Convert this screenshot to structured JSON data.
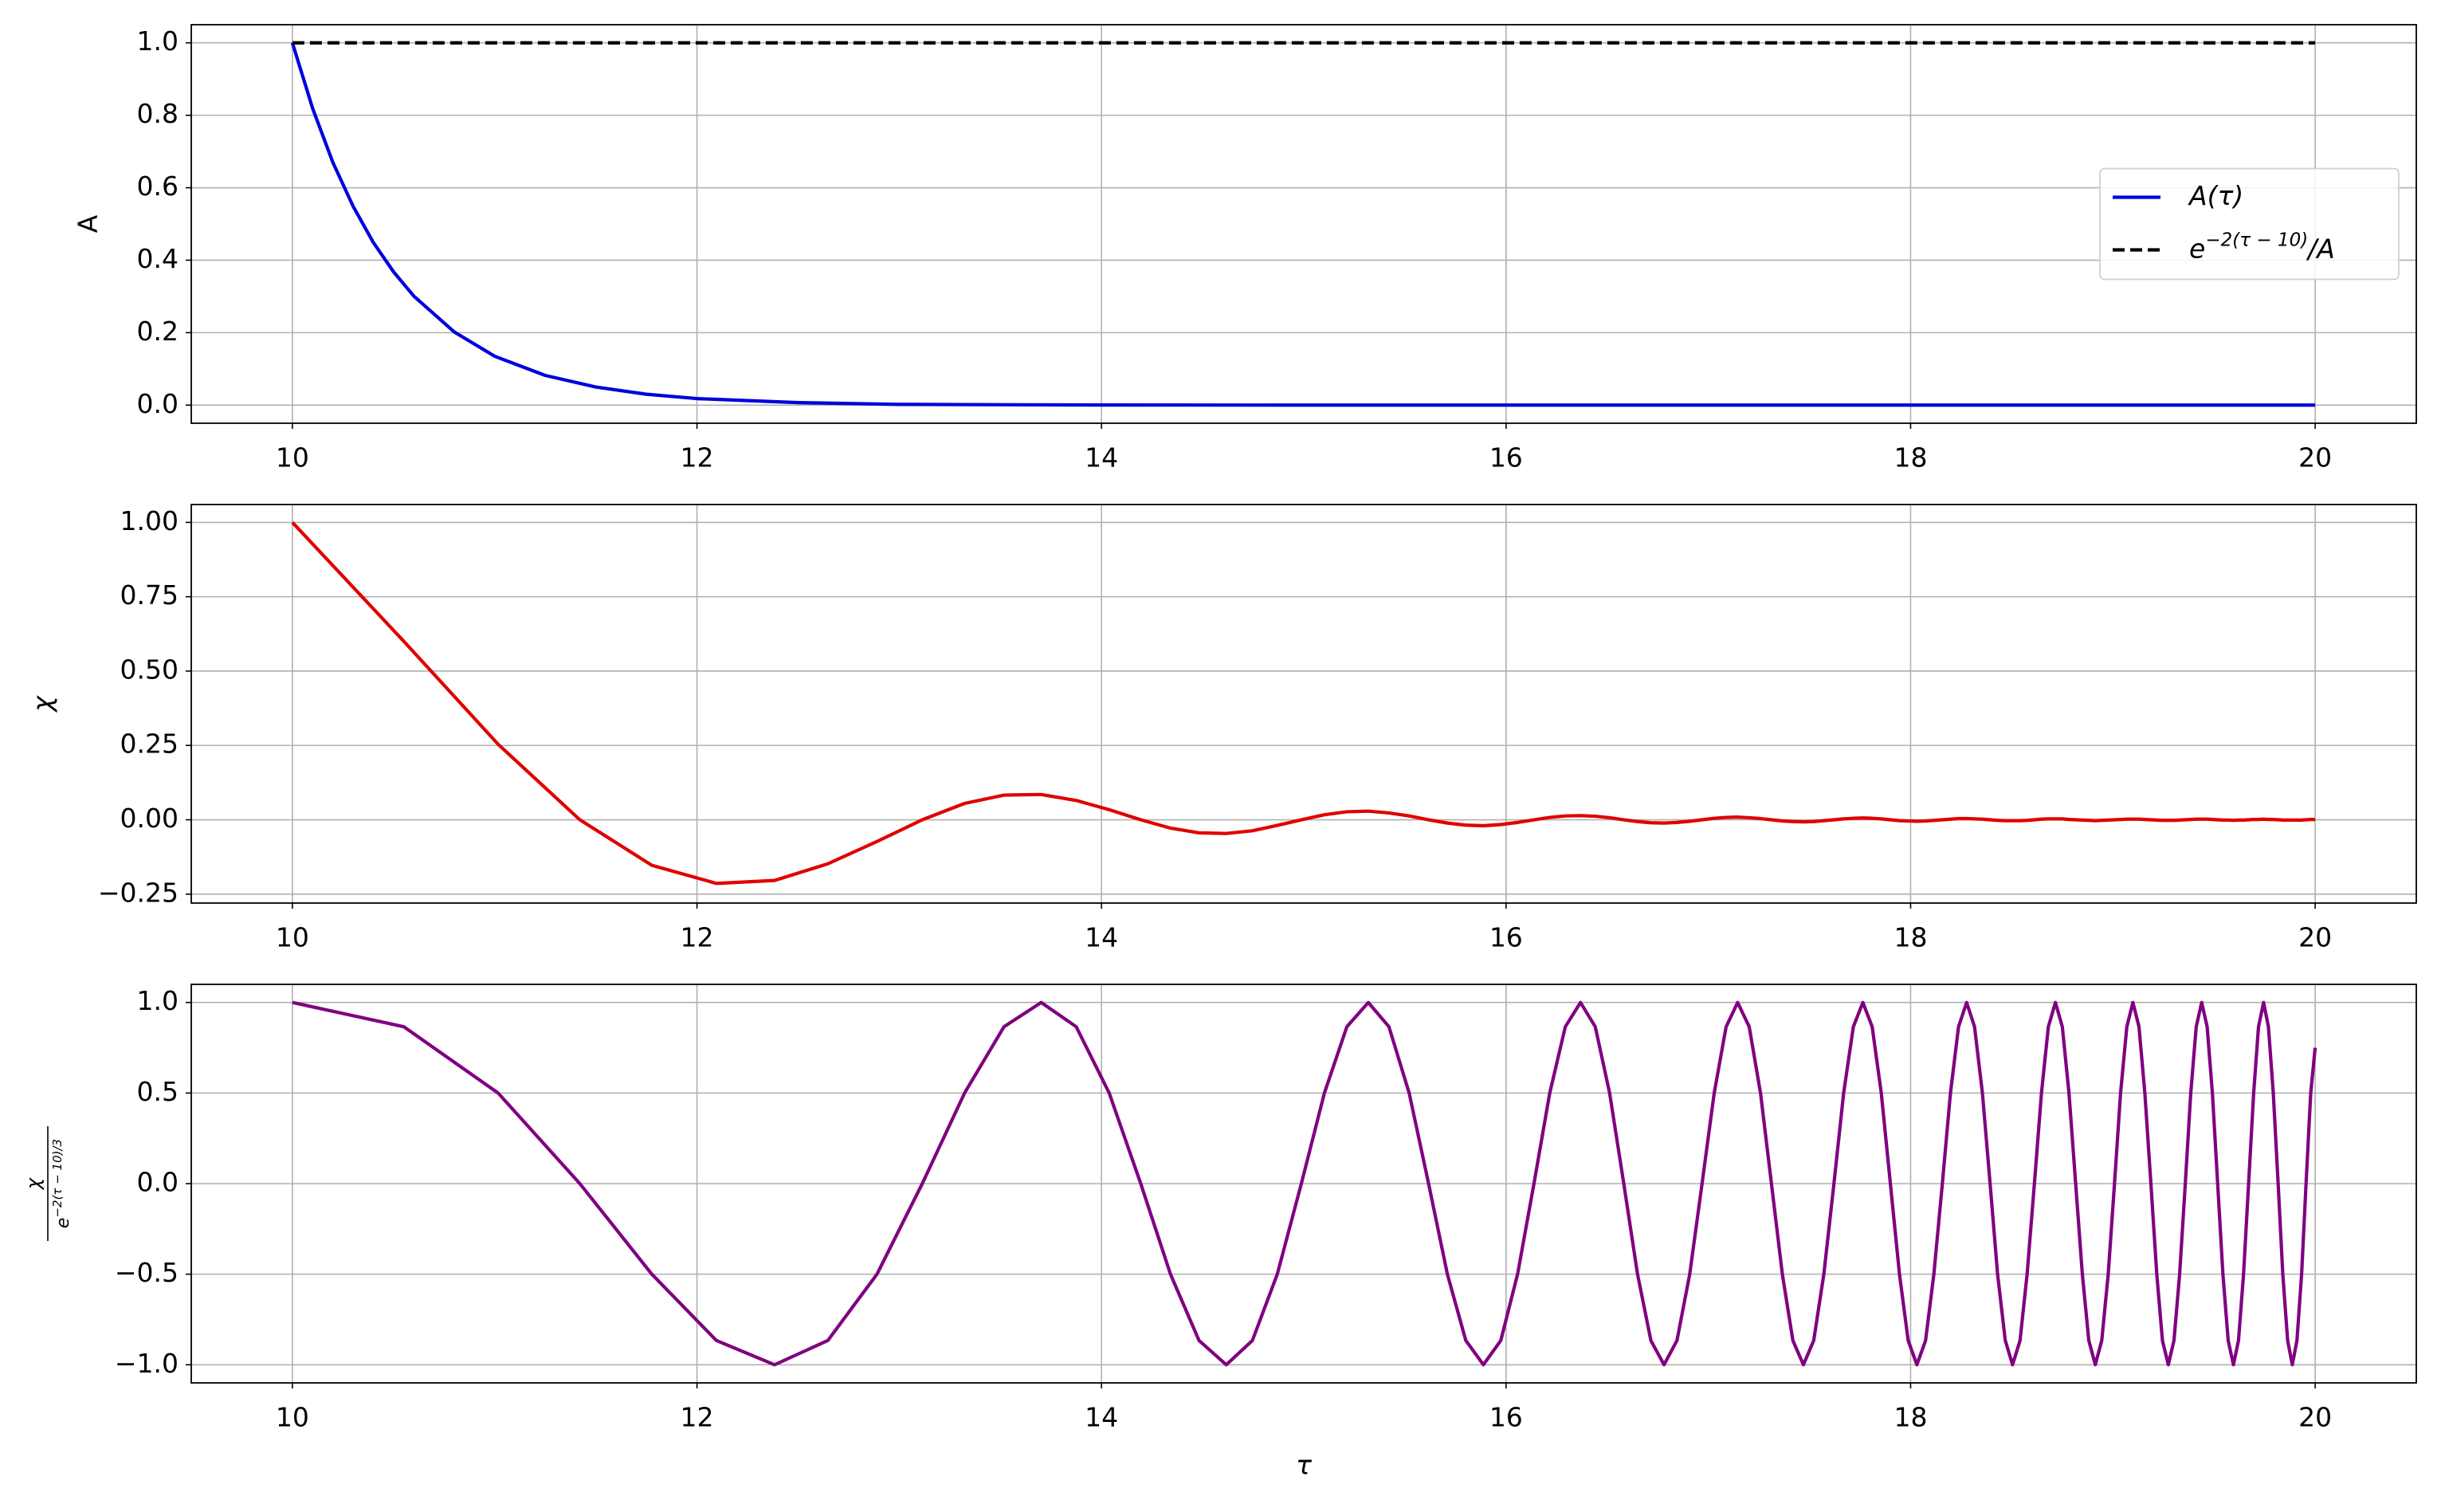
{
  "chart_data": [
    {
      "type": "line",
      "ylabel": "A",
      "grid": true,
      "legend": "center right",
      "xlim": [
        9.5,
        20.5
      ],
      "xticks": [
        10,
        12,
        14,
        16,
        18,
        20
      ],
      "ylim": [
        -0.05,
        1.05
      ],
      "yticks": [
        {
          "value": 0,
          "label": "0.0"
        },
        0.2,
        0.4,
        0.6,
        0.8,
        {
          "value": 1,
          "label": "1.0"
        }
      ],
      "x": [
        10,
        10.1,
        10.2,
        10.3,
        10.4,
        10.5,
        10.6,
        10.8,
        11,
        11.25,
        11.5,
        11.75,
        12,
        12.5,
        13,
        14,
        15,
        16,
        18,
        20
      ],
      "series": [
        {
          "name": "A(τ)",
          "color": "#0000dd",
          "dash": false,
          "values": [
            1,
            0.819,
            0.67,
            0.549,
            0.449,
            0.368,
            0.301,
            0.202,
            0.135,
            0.082,
            0.05,
            0.03,
            0.018,
            0.007,
            0.002,
            0.0003,
            5e-05,
            6e-06,
            1e-07,
            2e-09
          ]
        },
        {
          "name": {
            "base": "e",
            "sup": "−2(τ − 10)",
            "tail": "/A"
          },
          "color": "#000000",
          "dash": true,
          "values": [
            1,
            1,
            1,
            1,
            1,
            1,
            1,
            1,
            1,
            1,
            1,
            1,
            1,
            1,
            1,
            1,
            1,
            1,
            1,
            1
          ]
        }
      ]
    },
    {
      "type": "line",
      "ylabel": "χ",
      "grid": true,
      "xlim": [
        9.5,
        20.5
      ],
      "xticks": [
        10,
        12,
        14,
        16,
        18,
        20
      ],
      "ylim": [
        -0.28,
        1.06
      ],
      "yticks": [
        {
          "value": -0.25,
          "label": "−0.25"
        },
        {
          "value": 0,
          "label": "0.00"
        },
        {
          "value": 0.25,
          "label": "0.25"
        },
        {
          "value": 0.5,
          "label": "0.50"
        },
        0.75,
        {
          "value": 1,
          "label": "1.00"
        }
      ],
      "x": [
        10,
        10.551,
        11.017,
        11.421,
        11.777,
        12.096,
        12.384,
        12.647,
        12.89,
        13.114,
        13.323,
        13.518,
        13.702,
        13.875,
        14.038,
        14.194,
        14.341,
        14.482,
        14.617,
        14.746,
        14.869,
        14.988,
        15.102,
        15.213,
        15.319,
        15.421,
        15.521,
        15.617,
        15.71,
        15.801,
        15.888,
        15.974,
        16.057,
        16.138,
        16.216,
        16.293,
        16.368,
        16.441,
        16.512,
        16.582,
        16.65,
        16.716,
        16.781,
        16.845,
        16.908,
        16.969,
        17.029,
        17.088,
        17.145,
        17.202,
        17.258,
        17.312,
        17.366,
        17.418,
        17.47,
        17.521,
        17.571,
        17.621,
        17.669,
        17.717,
        17.764,
        17.81,
        17.855,
        17.9,
        17.945,
        17.988,
        18.031,
        18.074,
        18.115,
        18.157,
        18.197,
        18.237,
        18.277,
        18.316,
        18.355,
        18.393,
        18.43,
        18.468,
        18.504,
        18.541,
        18.576,
        18.612,
        18.647,
        18.681,
        18.716,
        18.75,
        18.783,
        18.816,
        18.849,
        18.881,
        18.913,
        18.945,
        18.977,
        19.008,
        19.038,
        19.069,
        19.099,
        19.129,
        19.158,
        19.188,
        19.217,
        19.245,
        19.274,
        19.302,
        19.33,
        19.358,
        19.385,
        19.412,
        19.439,
        19.466,
        19.492,
        19.518,
        19.544,
        19.57,
        19.596,
        19.621,
        19.646,
        19.671,
        19.696,
        19.72,
        19.745,
        19.769,
        19.793,
        19.817,
        19.84,
        19.864,
        19.887,
        19.91,
        19.933,
        19.955,
        19.978,
        20
      ],
      "series": [
        {
          "color": "#e00000",
          "dash": false,
          "values": [
            1,
            0.6,
            0.254,
            0,
            -0.153,
            -0.214,
            -0.204,
            -0.148,
            -0.073,
            0,
            0.055,
            0.083,
            0.085,
            0.065,
            0.034,
            0,
            -0.028,
            -0.044,
            -0.046,
            -0.037,
            -0.019,
            0,
            0.017,
            0.027,
            0.029,
            0.023,
            0.013,
            0,
            -0.011,
            -0.018,
            -0.02,
            -0.016,
            -0.009,
            0,
            0.008,
            0.013,
            0.014,
            0.012,
            0.007,
            0,
            -0.006,
            -0.01,
            -0.011,
            -0.009,
            -0.005,
            0,
            0.005,
            0.008,
            0.009,
            0.007,
            0.004,
            0,
            -0.004,
            -0.006,
            -0.007,
            -0.006,
            -0.003,
            0,
            0.003,
            0.005,
            0.006,
            0.005,
            0.003,
            0,
            -0.003,
            -0.004,
            -0.005,
            -0.004,
            -0.002,
            0,
            0.002,
            0.004,
            0.004,
            0.003,
            0.002,
            0,
            -0.002,
            -0.003,
            -0.003,
            -0.003,
            -0.002,
            0,
            0.002,
            0.003,
            0.003,
            0.003,
            0.001,
            0,
            -0.001,
            -0.002,
            -0.003,
            -0.002,
            -0.001,
            0,
            0.001,
            0.002,
            0.002,
            0.002,
            0.001,
            0,
            -0.001,
            -0.002,
            -0.002,
            -0.002,
            -0.001,
            0,
            0.001,
            0.002,
            0.002,
            0.002,
            0.001,
            0,
            -0.001,
            -0.001,
            -0.002,
            -0.001,
            -0.001,
            0,
            0.001,
            0.001,
            0.002,
            0.001,
            0.001,
            0,
            -0.001,
            -0.001,
            -0.001,
            -0.001,
            -0.001,
            0,
            0.001,
            0.001
          ]
        }
      ]
    },
    {
      "type": "line",
      "ylabel": {
        "num": "χ",
        "den": "e",
        "den_sup": "−2(τ − 10)/3"
      },
      "xlabel": "τ",
      "grid": true,
      "xlim": [
        9.5,
        20.5
      ],
      "xticks": [
        10,
        12,
        14,
        16,
        18,
        20
      ],
      "ylim": [
        -1.1,
        1.1
      ],
      "yticks": [
        {
          "value": -1,
          "label": "−1.0"
        },
        {
          "value": -0.5,
          "label": "−0.5"
        },
        {
          "value": 0,
          "label": "0.0"
        },
        0.5,
        {
          "value": 1,
          "label": "1.0"
        }
      ],
      "x": [
        10,
        10.551,
        11.017,
        11.421,
        11.777,
        12.096,
        12.384,
        12.647,
        12.89,
        13.114,
        13.323,
        13.518,
        13.702,
        13.875,
        14.038,
        14.194,
        14.341,
        14.482,
        14.617,
        14.746,
        14.869,
        14.988,
        15.102,
        15.213,
        15.319,
        15.421,
        15.521,
        15.617,
        15.71,
        15.801,
        15.888,
        15.974,
        16.057,
        16.138,
        16.216,
        16.293,
        16.368,
        16.441,
        16.512,
        16.582,
        16.65,
        16.716,
        16.781,
        16.845,
        16.908,
        16.969,
        17.029,
        17.088,
        17.145,
        17.202,
        17.258,
        17.312,
        17.366,
        17.418,
        17.47,
        17.521,
        17.571,
        17.621,
        17.669,
        17.717,
        17.764,
        17.81,
        17.855,
        17.9,
        17.945,
        17.988,
        18.031,
        18.074,
        18.115,
        18.157,
        18.197,
        18.237,
        18.277,
        18.316,
        18.355,
        18.393,
        18.43,
        18.468,
        18.504,
        18.541,
        18.576,
        18.612,
        18.647,
        18.681,
        18.716,
        18.75,
        18.783,
        18.816,
        18.849,
        18.881,
        18.913,
        18.945,
        18.977,
        19.008,
        19.038,
        19.069,
        19.099,
        19.129,
        19.158,
        19.188,
        19.217,
        19.245,
        19.274,
        19.302,
        19.33,
        19.358,
        19.385,
        19.412,
        19.439,
        19.466,
        19.492,
        19.518,
        19.544,
        19.57,
        19.596,
        19.621,
        19.646,
        19.671,
        19.696,
        19.72,
        19.745,
        19.769,
        19.793,
        19.817,
        19.84,
        19.864,
        19.887,
        19.91,
        19.933,
        19.955,
        19.978,
        20
      ],
      "series": [
        {
          "color": "#800080",
          "dash": false,
          "values": [
            1,
            0.866,
            0.5,
            0,
            -0.5,
            -0.866,
            -1,
            -0.866,
            -0.5,
            0,
            0.5,
            0.866,
            1,
            0.866,
            0.5,
            0,
            -0.5,
            -0.866,
            -1,
            -0.866,
            -0.5,
            0,
            0.5,
            0.866,
            1,
            0.866,
            0.5,
            0,
            -0.5,
            -0.866,
            -1,
            -0.866,
            -0.5,
            0,
            0.5,
            0.866,
            1,
            0.866,
            0.5,
            0,
            -0.5,
            -0.866,
            -1,
            -0.866,
            -0.5,
            0,
            0.5,
            0.866,
            1,
            0.866,
            0.5,
            0,
            -0.5,
            -0.866,
            -1,
            -0.866,
            -0.5,
            0,
            0.5,
            0.866,
            1,
            0.866,
            0.5,
            0,
            -0.5,
            -0.866,
            -1,
            -0.866,
            -0.5,
            0,
            0.5,
            0.866,
            1,
            0.866,
            0.5,
            0,
            -0.5,
            -0.866,
            -1,
            -0.866,
            -0.5,
            0,
            0.5,
            0.866,
            1,
            0.866,
            0.5,
            0,
            -0.5,
            -0.866,
            -1,
            -0.866,
            -0.5,
            0,
            0.5,
            0.866,
            1,
            0.866,
            0.5,
            0,
            -0.5,
            -0.866,
            -1,
            -0.866,
            -0.5,
            0,
            0.5,
            0.866,
            1,
            0.866,
            0.5,
            0,
            -0.5,
            -0.866,
            -1,
            -0.866,
            -0.5,
            0,
            0.5,
            0.866,
            1,
            0.866,
            0.5,
            0,
            -0.5,
            -0.866,
            -1,
            -0.866,
            -0.5,
            0,
            0.5,
            0.75
          ]
        }
      ]
    }
  ]
}
